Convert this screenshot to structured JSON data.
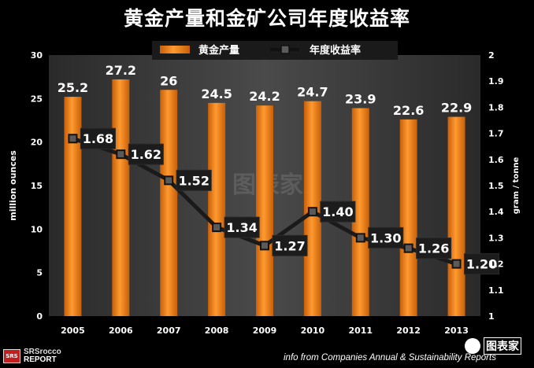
{
  "chart_data": {
    "type": "bar+line",
    "title": "黄金产量和金矿公司年度收益率",
    "categories": [
      "2005",
      "2006",
      "2007",
      "2008",
      "2009",
      "2010",
      "2011",
      "2012",
      "2013"
    ],
    "series": [
      {
        "name": "黄金产量",
        "type": "bar",
        "axis": "left",
        "values": [
          25.2,
          27.2,
          26,
          24.5,
          24.2,
          24.7,
          23.9,
          22.6,
          22.9
        ],
        "labels": [
          "25.2",
          "27.2",
          "26",
          "24.5",
          "24.2",
          "24.7",
          "23.9",
          "22.6",
          "22.9"
        ],
        "color": "#f07d14"
      },
      {
        "name": "年度收益率",
        "type": "line",
        "axis": "right",
        "values": [
          1.68,
          1.62,
          1.52,
          1.34,
          1.27,
          1.4,
          1.3,
          1.26,
          1.2
        ],
        "labels": [
          "1.68",
          "1.62",
          "1.52",
          "1.34",
          "1.27",
          "1.40",
          "1.30",
          "1.26",
          "1.20"
        ],
        "color": "#222222"
      }
    ],
    "ylabel_left": "million ounces",
    "ylabel_right": "gram / tonne",
    "ylim_left": [
      0,
      30
    ],
    "ylim_right": [
      1,
      2
    ],
    "yticks_left": [
      "0",
      "5",
      "10",
      "15",
      "20",
      "25",
      "30"
    ],
    "yticks_right": [
      "1",
      "1.1",
      "1.2",
      "1.3",
      "1.4",
      "1.5",
      "1.6",
      "1.7",
      "1.8",
      "1.9",
      "2"
    ],
    "legend_position": "top-center",
    "grid": false
  },
  "footer": {
    "source": "info from Companies Annual & Sustainability Reports",
    "logo_text_line1": "SRSrocco",
    "logo_text_line2": "REPORT",
    "brand_text": "图表家",
    "watermark": "图表家"
  },
  "colors": {
    "background": "#000000",
    "plot_background": "#3c3c3c",
    "bar": "#f07d14",
    "line": "#222222",
    "text": "#ffffff"
  }
}
